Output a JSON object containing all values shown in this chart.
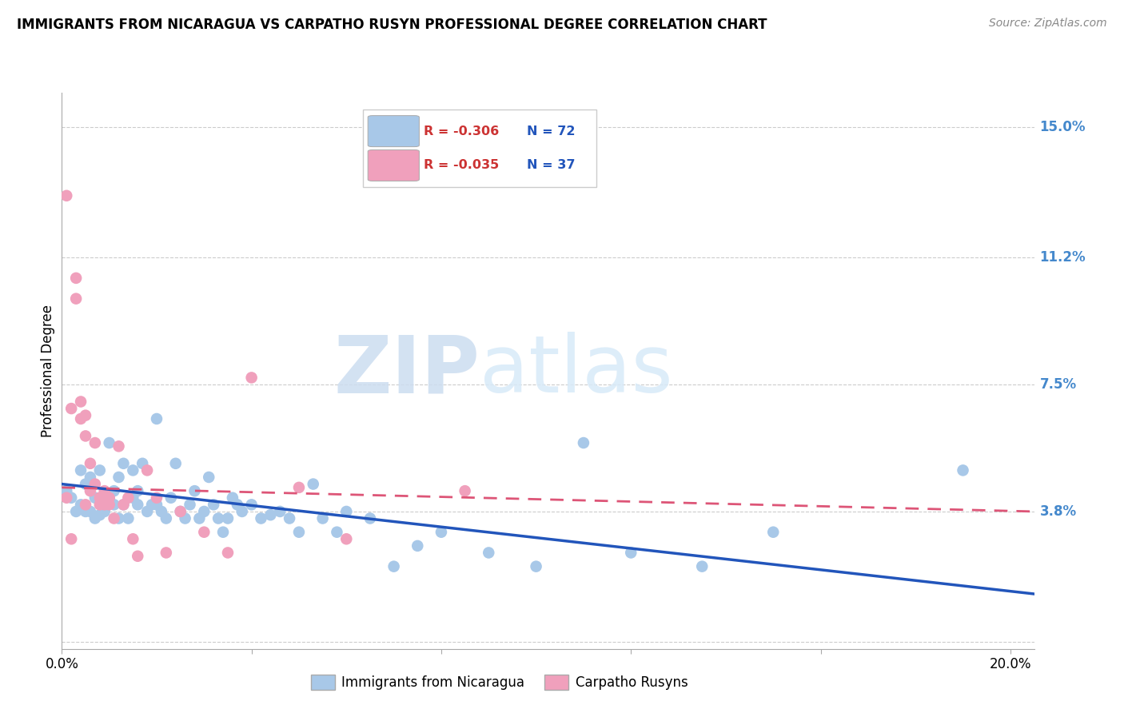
{
  "title": "IMMIGRANTS FROM NICARAGUA VS CARPATHO RUSYN PROFESSIONAL DEGREE CORRELATION CHART",
  "source": "Source: ZipAtlas.com",
  "ylabel": "Professional Degree",
  "watermark_zip": "ZIP",
  "watermark_atlas": "atlas",
  "xlim": [
    0.0,
    0.205
  ],
  "ylim": [
    -0.002,
    0.16
  ],
  "ytick_labels_right": [
    "15.0%",
    "11.2%",
    "7.5%",
    "3.8%"
  ],
  "ytick_vals_right": [
    0.15,
    0.112,
    0.075,
    0.038
  ],
  "grid_vals": [
    0.15,
    0.112,
    0.075,
    0.038,
    0.0
  ],
  "blue_color": "#a8c8e8",
  "pink_color": "#f0a0bc",
  "blue_line_color": "#2255bb",
  "pink_line_color": "#dd5577",
  "right_axis_color": "#4488cc",
  "blue_scatter_x": [
    0.001,
    0.002,
    0.003,
    0.004,
    0.004,
    0.005,
    0.005,
    0.006,
    0.006,
    0.007,
    0.007,
    0.008,
    0.008,
    0.009,
    0.009,
    0.01,
    0.01,
    0.011,
    0.011,
    0.012,
    0.012,
    0.013,
    0.013,
    0.014,
    0.015,
    0.015,
    0.016,
    0.016,
    0.017,
    0.018,
    0.019,
    0.02,
    0.02,
    0.021,
    0.022,
    0.023,
    0.024,
    0.025,
    0.026,
    0.027,
    0.028,
    0.029,
    0.03,
    0.031,
    0.032,
    0.033,
    0.034,
    0.035,
    0.036,
    0.037,
    0.038,
    0.04,
    0.042,
    0.044,
    0.046,
    0.048,
    0.05,
    0.053,
    0.055,
    0.058,
    0.06,
    0.065,
    0.07,
    0.075,
    0.08,
    0.09,
    0.1,
    0.11,
    0.12,
    0.135,
    0.15,
    0.19
  ],
  "blue_scatter_y": [
    0.044,
    0.042,
    0.038,
    0.05,
    0.04,
    0.038,
    0.046,
    0.038,
    0.048,
    0.036,
    0.042,
    0.037,
    0.05,
    0.038,
    0.04,
    0.042,
    0.058,
    0.04,
    0.044,
    0.036,
    0.048,
    0.04,
    0.052,
    0.036,
    0.042,
    0.05,
    0.04,
    0.044,
    0.052,
    0.038,
    0.04,
    0.065,
    0.04,
    0.038,
    0.036,
    0.042,
    0.052,
    0.038,
    0.036,
    0.04,
    0.044,
    0.036,
    0.038,
    0.048,
    0.04,
    0.036,
    0.032,
    0.036,
    0.042,
    0.04,
    0.038,
    0.04,
    0.036,
    0.037,
    0.038,
    0.036,
    0.032,
    0.046,
    0.036,
    0.032,
    0.038,
    0.036,
    0.022,
    0.028,
    0.032,
    0.026,
    0.022,
    0.058,
    0.026,
    0.022,
    0.032,
    0.05
  ],
  "pink_scatter_x": [
    0.001,
    0.001,
    0.002,
    0.002,
    0.003,
    0.003,
    0.004,
    0.004,
    0.005,
    0.005,
    0.005,
    0.006,
    0.006,
    0.007,
    0.007,
    0.008,
    0.008,
    0.009,
    0.009,
    0.01,
    0.01,
    0.011,
    0.012,
    0.013,
    0.014,
    0.015,
    0.016,
    0.018,
    0.02,
    0.022,
    0.025,
    0.03,
    0.035,
    0.04,
    0.05,
    0.06,
    0.085
  ],
  "pink_scatter_y": [
    0.13,
    0.042,
    0.068,
    0.03,
    0.1,
    0.106,
    0.065,
    0.07,
    0.06,
    0.066,
    0.04,
    0.044,
    0.052,
    0.046,
    0.058,
    0.042,
    0.04,
    0.04,
    0.044,
    0.042,
    0.04,
    0.036,
    0.057,
    0.04,
    0.042,
    0.03,
    0.025,
    0.05,
    0.042,
    0.026,
    0.038,
    0.032,
    0.026,
    0.077,
    0.045,
    0.03,
    0.044
  ],
  "blue_trend_x0": 0.0,
  "blue_trend_x1": 0.205,
  "blue_trend_y0": 0.046,
  "blue_trend_y1": 0.014,
  "pink_trend_x0": 0.0,
  "pink_trend_x1": 0.205,
  "pink_trend_y0": 0.045,
  "pink_trend_y1": 0.038
}
